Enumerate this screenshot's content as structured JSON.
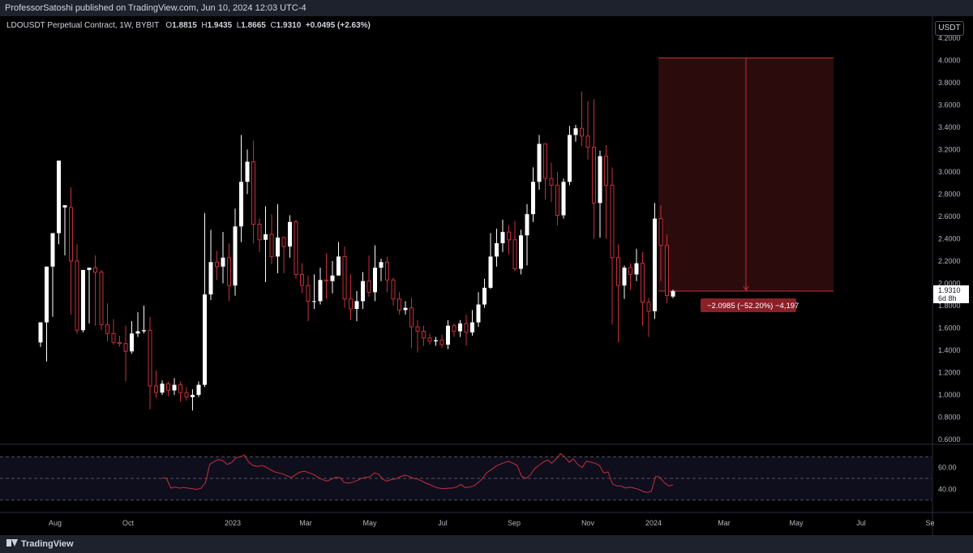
{
  "header": {
    "published": "ProfessorSatoshi published on TradingView.com, Jun 10, 2024 12:03 UTC-4"
  },
  "legend": {
    "symbol": "LDOUSDT Perpetual Contract, 1W, BYBIT",
    "o_label": "O",
    "o_value": "1.8815",
    "h_label": "H",
    "h_value": "1.9435",
    "l_label": "L",
    "l_value": "1.8665",
    "c_label": "C",
    "c_value": "1.9310",
    "change": "+0.0495 (+2.63%)"
  },
  "currency_button": "USDT",
  "footer": {
    "brand": "TradingView"
  },
  "chart_data": {
    "type": "candlestick",
    "ylim": [
      0.6,
      4.3
    ],
    "yticks": [
      "4.2000",
      "4.0000",
      "3.8000",
      "3.6000",
      "3.4000",
      "3.2000",
      "3.0000",
      "2.8000",
      "2.6000",
      "2.4000",
      "2.2000",
      "2.0000",
      "1.8000",
      "1.6000",
      "1.4000",
      "1.2000",
      "1.0000",
      "0.8000",
      "0.6000"
    ],
    "x_labels": [
      "Aug",
      "Oct",
      "2023",
      "Mar",
      "May",
      "Jul",
      "Sep",
      "Nov",
      "2024",
      "Mar",
      "May",
      "Jul",
      "Se"
    ],
    "last_price": "1.9310",
    "countdown": "6d 8h",
    "colors": {
      "up": "#ffffff",
      "down": "#c62f3b",
      "rsi": "#c62f3b",
      "range": "#5c1c1c"
    },
    "measure": {
      "label": "−2.0985 (−52.20%) −4,197",
      "top": 4.02,
      "bottom": 1.93
    },
    "candles": [
      [
        1.47,
        1.65,
        1.43,
        1.47
      ],
      [
        1.65,
        2.15,
        1.3,
        1.65
      ],
      [
        2.15,
        2.45,
        1.7,
        2.15
      ],
      [
        2.45,
        3.1,
        2.35,
        2.45
      ],
      [
        2.68,
        2.7,
        2.25,
        2.68
      ],
      [
        2.68,
        2.2,
        2.86,
        1.72
      ],
      [
        2.2,
        1.58,
        2.35,
        1.55
      ],
      [
        1.58,
        2.12,
        1.56,
        2.12
      ],
      [
        2.12,
        2.14,
        1.64,
        2.14
      ],
      [
        2.14,
        2.1,
        2.25,
        1.62
      ],
      [
        2.1,
        1.63,
        2.12,
        1.58
      ],
      [
        1.63,
        1.55,
        1.82,
        1.48
      ],
      [
        1.55,
        1.47,
        1.68,
        1.45
      ],
      [
        1.47,
        1.46,
        1.53,
        1.43
      ],
      [
        1.46,
        1.39,
        1.62,
        1.12
      ],
      [
        1.39,
        1.55,
        1.66,
        1.37
      ],
      [
        1.55,
        1.57,
        1.74,
        1.52
      ],
      [
        1.57,
        1.58,
        1.8,
        1.55
      ],
      [
        1.58,
        1.08,
        1.7,
        0.87
      ],
      [
        1.08,
        1.02,
        1.22,
        0.97
      ],
      [
        1.02,
        1.1,
        1.13,
        1.0
      ],
      [
        1.1,
        1.04,
        1.12,
        0.99
      ],
      [
        1.04,
        1.09,
        1.15,
        1.0
      ],
      [
        1.09,
        1.02,
        1.12,
        0.94
      ],
      [
        1.02,
        0.98,
        1.07,
        0.95
      ],
      [
        0.98,
        1.0,
        1.05,
        0.86
      ],
      [
        1.0,
        1.09,
        1.12,
        0.98
      ],
      [
        1.09,
        1.9,
        2.63,
        1.07
      ],
      [
        1.9,
        2.19,
        2.48,
        1.85
      ],
      [
        2.19,
        2.15,
        2.29,
        2.03
      ],
      [
        2.15,
        2.23,
        2.46,
        2.0
      ],
      [
        2.23,
        1.98,
        2.36,
        1.84
      ],
      [
        1.98,
        2.51,
        2.67,
        1.89
      ],
      [
        2.51,
        2.91,
        3.33,
        2.37
      ],
      [
        2.91,
        3.09,
        3.2,
        2.8
      ],
      [
        3.09,
        2.53,
        3.28,
        2.36
      ],
      [
        2.53,
        2.39,
        2.58,
        2.28
      ],
      [
        2.39,
        2.44,
        2.69,
        2.01
      ],
      [
        2.44,
        2.24,
        2.62,
        2.17
      ],
      [
        2.24,
        2.41,
        2.71,
        2.09
      ],
      [
        2.41,
        2.33,
        2.42,
        2.09
      ],
      [
        2.33,
        2.55,
        2.61,
        2.23
      ],
      [
        2.55,
        2.08,
        2.57,
        2.04
      ],
      [
        2.08,
        1.98,
        2.18,
        1.91
      ],
      [
        1.98,
        1.84,
        2.07,
        1.66
      ],
      [
        1.84,
        1.84,
        2.08,
        1.77
      ],
      [
        1.84,
        2.03,
        2.14,
        1.81
      ],
      [
        2.03,
        2.02,
        2.27,
        1.86
      ],
      [
        2.02,
        2.07,
        2.2,
        1.91
      ],
      [
        2.07,
        2.24,
        2.37,
        2.07
      ],
      [
        2.24,
        1.86,
        2.33,
        1.78
      ],
      [
        1.86,
        1.77,
        2.08,
        1.67
      ],
      [
        1.77,
        1.84,
        1.93,
        1.66
      ],
      [
        1.84,
        2.02,
        2.1,
        1.77
      ],
      [
        2.02,
        1.92,
        2.25,
        1.88
      ],
      [
        1.92,
        2.14,
        2.34,
        1.84
      ],
      [
        2.14,
        2.19,
        2.22,
        2.02
      ],
      [
        2.19,
        2.03,
        2.24,
        1.92
      ],
      [
        2.03,
        1.86,
        2.05,
        1.8
      ],
      [
        1.86,
        1.76,
        1.92,
        1.72
      ],
      [
        1.76,
        1.78,
        1.84,
        1.72
      ],
      [
        1.78,
        1.61,
        1.87,
        1.42
      ],
      [
        1.61,
        1.57,
        1.67,
        1.38
      ],
      [
        1.57,
        1.51,
        1.62,
        1.44
      ],
      [
        1.51,
        1.48,
        1.55,
        1.45
      ],
      [
        1.48,
        1.49,
        1.52,
        1.44
      ],
      [
        1.49,
        1.45,
        1.54,
        1.42
      ],
      [
        1.45,
        1.62,
        1.67,
        1.41
      ],
      [
        1.62,
        1.57,
        1.64,
        1.52
      ],
      [
        1.57,
        1.64,
        1.67,
        1.52
      ],
      [
        1.64,
        1.56,
        1.72,
        1.44
      ],
      [
        1.56,
        1.65,
        1.76,
        1.53
      ],
      [
        1.65,
        1.81,
        1.92,
        1.61
      ],
      [
        1.81,
        1.96,
        2.04,
        1.78
      ],
      [
        1.96,
        2.24,
        2.45,
        1.95
      ],
      [
        2.24,
        2.36,
        2.49,
        2.15
      ],
      [
        2.36,
        2.46,
        2.57,
        2.28
      ],
      [
        2.46,
        2.39,
        2.52,
        2.26
      ],
      [
        2.39,
        2.13,
        2.56,
        2.11
      ],
      [
        2.13,
        2.43,
        2.48,
        2.08
      ],
      [
        2.43,
        2.62,
        2.71,
        2.16
      ],
      [
        2.62,
        2.91,
        3.04,
        2.55
      ],
      [
        2.91,
        3.25,
        3.33,
        2.84
      ],
      [
        3.25,
        2.94,
        3.12,
        2.75
      ],
      [
        2.94,
        2.88,
        3.08,
        2.73
      ],
      [
        2.88,
        2.61,
        3.0,
        2.52
      ],
      [
        2.61,
        2.91,
        2.94,
        2.58
      ],
      [
        2.91,
        3.33,
        3.41,
        2.88
      ],
      [
        3.33,
        3.39,
        3.42,
        3.27
      ],
      [
        3.39,
        3.32,
        3.72,
        3.23
      ],
      [
        3.32,
        3.22,
        3.63,
        3.11
      ],
      [
        3.22,
        2.72,
        3.65,
        2.4
      ],
      [
        2.72,
        3.14,
        3.19,
        2.41
      ],
      [
        3.14,
        2.88,
        3.24,
        2.4
      ],
      [
        2.88,
        2.23,
        3.04,
        1.63
      ],
      [
        2.23,
        1.98,
        2.35,
        1.47
      ],
      [
        1.98,
        2.14,
        2.16,
        1.86
      ],
      [
        2.14,
        2.08,
        2.18,
        1.94
      ],
      [
        2.08,
        2.18,
        2.31,
        2.02
      ],
      [
        2.18,
        1.83,
        2.28,
        1.62
      ],
      [
        1.83,
        1.75,
        1.87,
        1.52
      ],
      [
        1.75,
        2.58,
        2.72,
        1.68
      ],
      [
        2.58,
        2.34,
        2.7,
        2.02
      ],
      [
        2.34,
        1.89,
        2.44,
        1.82
      ],
      [
        1.8815,
        1.931,
        1.9435,
        1.8665
      ]
    ],
    "rsi": {
      "levels": [
        70,
        50,
        30
      ],
      "tick_labels": [
        "60.00",
        "40.00"
      ],
      "start_index": 20,
      "values": [
        50.5,
        50.2,
        41,
        42,
        41,
        41.5,
        41,
        40.5,
        39.8,
        41,
        46,
        63,
        65.5,
        67.5,
        66.5,
        63,
        64.5,
        69,
        70,
        71.5,
        65,
        62,
        61,
        62,
        60.5,
        58,
        56,
        55,
        54,
        52,
        51,
        54,
        56,
        56.5,
        55,
        53.5,
        51,
        49,
        47.5,
        49,
        51,
        51,
        46.5,
        45.5,
        46.5,
        48,
        50,
        51,
        51.5,
        55,
        54,
        49,
        47.5,
        49,
        49.5,
        51.5,
        53,
        52,
        50,
        49.5,
        47.5,
        45.5,
        44,
        42,
        41,
        40.5,
        41,
        41,
        42,
        44.5,
        41.5,
        42,
        43,
        46,
        50,
        55.5,
        58,
        61,
        63,
        64.5,
        66,
        64,
        62,
        52,
        50,
        53,
        59,
        62,
        65,
        67,
        64,
        68,
        73,
        70,
        65,
        68,
        63,
        60,
        66,
        65,
        64,
        62,
        55,
        56,
        45,
        43,
        43,
        41,
        42,
        41,
        40,
        38,
        37,
        38,
        52,
        51,
        46,
        43,
        44
      ]
    }
  }
}
